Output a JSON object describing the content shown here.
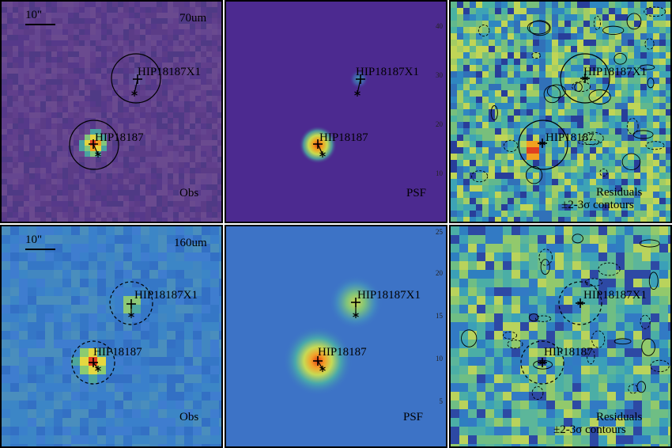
{
  "rows": [
    {
      "band": "70um",
      "panels": [
        {
          "id": "obs",
          "label": "Obs",
          "base": "#5a3a86",
          "bg": "purple"
        },
        {
          "id": "psf",
          "label": "PSF",
          "base": "#4d2a91",
          "bg": "purple-smooth"
        },
        {
          "id": "res",
          "label_lines": [
            "Residuals",
            "±2-3σ contours"
          ],
          "base": "#3fa7b3",
          "bg": "res"
        }
      ],
      "ticks": [
        "40",
        "30",
        "20",
        "10"
      ]
    },
    {
      "band": "160um",
      "panels": [
        {
          "id": "obs",
          "label": "Obs",
          "base": "#3a7fc8",
          "bg": "blue"
        },
        {
          "id": "psf",
          "label": "PSF",
          "base": "#3d73c6",
          "bg": "blue-smooth"
        },
        {
          "id": "res",
          "label_lines": [
            "Residuals",
            "±2-3σ contours"
          ],
          "base": "#45a7b0",
          "bg": "res"
        }
      ],
      "ticks": [
        "25",
        "20",
        "15",
        "10",
        "5"
      ]
    }
  ],
  "scalebar_label": "10\"",
  "sources": {
    "primary": "HIP18187",
    "secondary": "HIP18187X1"
  }
}
